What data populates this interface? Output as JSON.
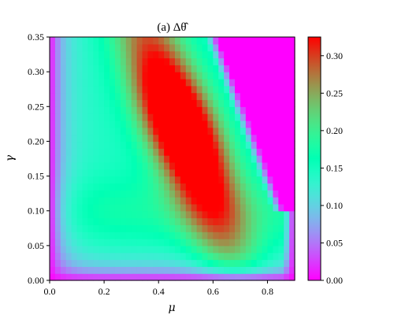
{
  "chart_data": {
    "type": "heatmap",
    "title": "(a) Δθ̂",
    "xlabel": "μ",
    "ylabel": "γ",
    "xlim": [
      0.0,
      0.9
    ],
    "ylim": [
      0.0,
      0.35
    ],
    "x_ticks": [
      "0.0",
      "0.2",
      "0.4",
      "0.6",
      "0.8"
    ],
    "x_tick_values": [
      0.0,
      0.2,
      0.4,
      0.6,
      0.8
    ],
    "y_ticks": [
      "0.00",
      "0.05",
      "0.10",
      "0.15",
      "0.20",
      "0.25",
      "0.30",
      "0.35"
    ],
    "y_tick_values": [
      0.0,
      0.05,
      0.1,
      0.15,
      0.2,
      0.25,
      0.3,
      0.35
    ],
    "grid": false,
    "colormap": "rainbow",
    "colorbar": {
      "range": [
        0.0,
        0.325
      ],
      "ticks": [
        "0.00",
        "0.05",
        "0.10",
        "0.15",
        "0.20",
        "0.25",
        "0.30"
      ],
      "tick_values": [
        0.0,
        0.05,
        0.1,
        0.15,
        0.2,
        0.25,
        0.3
      ]
    },
    "resolution": {
      "nx": 45,
      "ny": 35
    },
    "features": {
      "zero_region": "upper-right beyond diagonal boundary",
      "peak_value": 0.32,
      "peak_location": {
        "mu": 0.42,
        "gamma": 0.22
      }
    }
  }
}
